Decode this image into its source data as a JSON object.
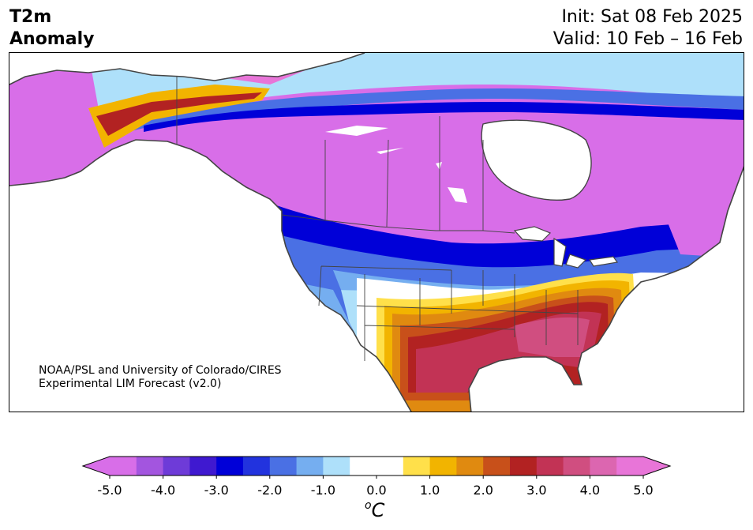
{
  "title": {
    "variable": "T2m",
    "variable_line2": "Anomaly",
    "init": "Init: Sat 08 Feb 2025",
    "valid": "Valid: 10 Feb – 16 Feb"
  },
  "credit": {
    "line1": "NOAA/PSL and University of Colorado/CIRES",
    "line2": "Experimental LIM Forecast (v2.0)"
  },
  "colorbar": {
    "unit_base": "C",
    "unit_prefix": "o",
    "min": -5.0,
    "max": 5.0,
    "step": 0.5,
    "extend": "both",
    "ticks": [
      "-5.0",
      "-4.0",
      "-3.0",
      "-2.0",
      "-1.0",
      "0.0",
      "1.0",
      "2.0",
      "3.0",
      "4.0",
      "5.0"
    ],
    "colors": [
      "#d86ee8",
      "#a355df",
      "#6e3bd8",
      "#3f19d0",
      "#0000d8",
      "#2233de",
      "#4a70e4",
      "#75aef0",
      "#aee0fa",
      "#ffffff",
      "#ffffff",
      "#ffe04a",
      "#f2b400",
      "#e08a10",
      "#c8501a",
      "#b22222",
      "#c23355",
      "#d04e80",
      "#dc66b0",
      "#e875d8"
    ],
    "under_color": "#d86ee8",
    "over_color": "#e875d8"
  },
  "map": {
    "region": "North America",
    "projection": "Lambert conformal",
    "levels": {
      "strong_cold": "#d86ee8",
      "cold3": "#6e3bd8",
      "cold2": "#0000d8",
      "cold1": "#4a70e4",
      "cool": "#75aef0",
      "slight_cool": "#aee0fa",
      "neutral": "#ffffff",
      "warm1": "#ffe04a",
      "warm2": "#f2b400",
      "warm3": "#e08a10",
      "warm4": "#c8501a",
      "warm5": "#b22222",
      "warm6": "#c23355",
      "warm7": "#d04e80"
    }
  }
}
